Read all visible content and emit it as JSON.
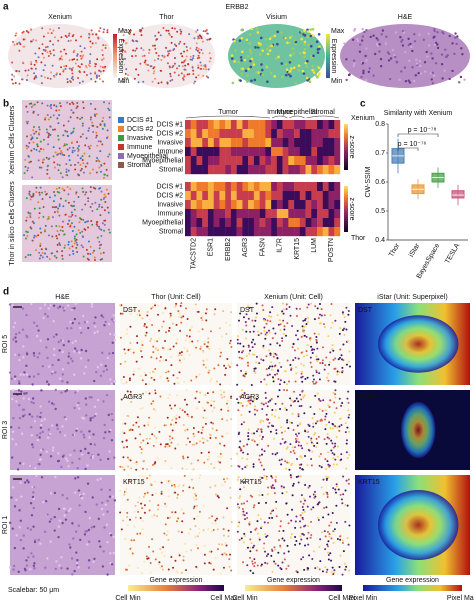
{
  "panel_a": {
    "label": "a",
    "title": "ERBB2",
    "columns": [
      "Xenium",
      "Thor",
      "Visium",
      "H&E"
    ],
    "colorbar": {
      "max": "Max",
      "label": "Expression",
      "min": "Min"
    }
  },
  "panel_b": {
    "label": "b",
    "row_labels": [
      "Xenium Cells Clusters",
      "Thor in silico Cells Clusters"
    ],
    "legend": [
      "DCIS #1",
      "DCIS #2",
      "Invasive",
      "Immune",
      "Myoepithelial",
      "Stromal"
    ],
    "legend_colors": [
      "#3a78c2",
      "#e8862a",
      "#3c9c46",
      "#c8332f",
      "#8f6bb5",
      "#8b5a4a"
    ],
    "groups": [
      "Tumor",
      "Immune",
      "Myoepithelial",
      "Stromal"
    ],
    "genes": [
      "TACSTD2",
      "ESR1",
      "ERBB2",
      "AGR3",
      "FASN",
      "IL7R",
      "KRT15",
      "LUM",
      "POSTN"
    ],
    "colorbar_titles": [
      "Xenium",
      "Thor"
    ],
    "colorbar_label": "z-score"
  },
  "chart_data": {
    "type": "box",
    "label": "c",
    "title": "Similarity with Xenium",
    "y_label": "CW-SSIM",
    "categories": [
      "Thor",
      "iStar",
      "BayesSpace",
      "TESLA"
    ],
    "colors": [
      "#4a7fb5",
      "#e89a3c",
      "#4aa04a",
      "#c9577c"
    ],
    "series": {
      "whisker_low": [
        0.63,
        0.54,
        0.58,
        0.52
      ],
      "q1": [
        0.665,
        0.56,
        0.6,
        0.545
      ],
      "median": [
        0.69,
        0.575,
        0.615,
        0.555
      ],
      "q3": [
        0.715,
        0.59,
        0.63,
        0.57
      ],
      "whisker_high": [
        0.75,
        0.61,
        0.65,
        0.59
      ]
    },
    "ylim": [
      0.4,
      0.8
    ],
    "yticks": [
      0.4,
      0.5,
      0.6,
      0.7,
      0.8
    ],
    "annotations": [
      "p = 10⁻⁷⁶",
      "p = 10⁻⁷⁸"
    ]
  },
  "panel_d": {
    "label": "d",
    "columns": [
      "H&E",
      "Thor (Unit: Cell)",
      "Xenium (Unit: Cell)",
      "iStar (Unit: Superpixel)"
    ],
    "rows": [
      "ROI 5",
      "ROI 3",
      "ROI 1"
    ],
    "genes": [
      "DST",
      "AGR3",
      "KRT15"
    ],
    "scalebar": "Scalebar: 50 μm",
    "colorbars": [
      {
        "title": "Gene expression",
        "min": "Cell Min",
        "max": "Cell Max"
      },
      {
        "title": "Gene expression",
        "min": "Cell Min",
        "max": "Cell Max"
      },
      {
        "title": "Gene expression",
        "min": "Pixel Min",
        "max": "Pixel Max"
      }
    ]
  }
}
